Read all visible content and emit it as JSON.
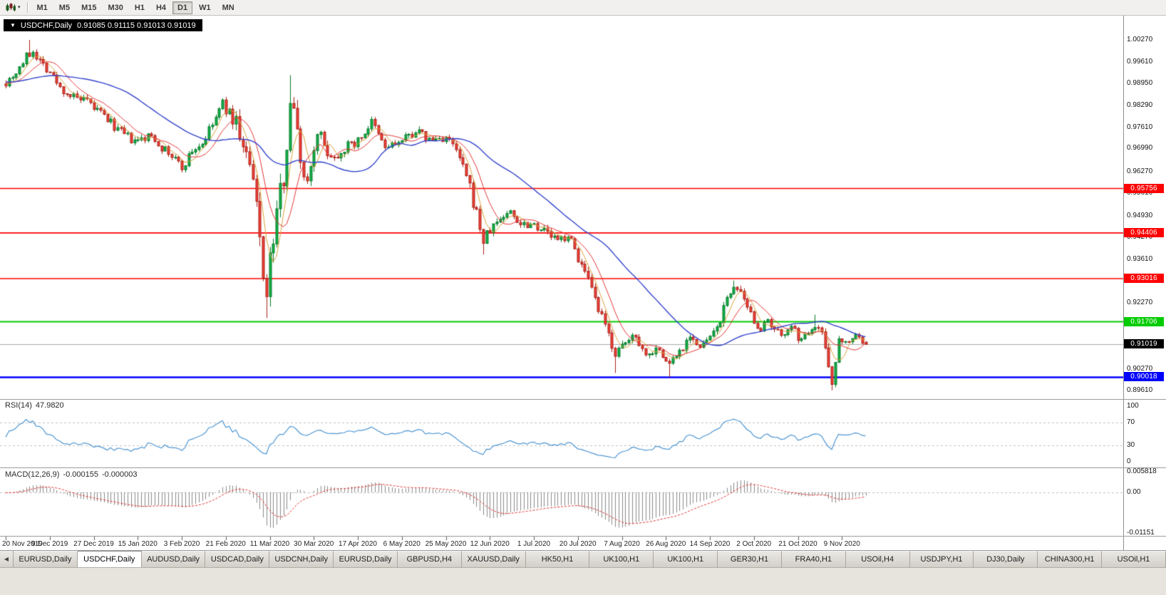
{
  "icons": {
    "chart_dropdown": "▼",
    "toolbar_caret": "▾",
    "tab_scroll_left": "◀"
  },
  "toolbar": {
    "timeframes": [
      "M1",
      "M5",
      "M15",
      "M30",
      "H1",
      "H4",
      "D1",
      "W1",
      "MN"
    ],
    "active_timeframe": "D1"
  },
  "chart": {
    "title_symbol": "USDCHF,Daily",
    "title_ohlc": "0.91085 0.91115 0.91013 0.91019"
  },
  "tabs": {
    "active_index": 1,
    "items": [
      "EURUSD,Daily",
      "USDCHF,Daily",
      "AUDUSD,Daily",
      "USDCAD,Daily",
      "USDCNH,Daily",
      "EURUSD,Daily",
      "GBPUSD,H4",
      "XAUUSD,Daily",
      "HK50,H1",
      "UK100,H1",
      "UK100,H1",
      "GER30,H1",
      "FRA40,H1",
      "USOil,H4",
      "USDJPY,H1",
      "DJ30,Daily",
      "CHINA300,H1",
      "USOil,H1"
    ]
  },
  "chart_data": {
    "type": "candlestick",
    "symbol": "USDCHF",
    "timeframe": "Daily",
    "bars": 255,
    "bars_per_x_tick": 13,
    "x_tick_labels": [
      "20 Nov 2019",
      "9 Dec 2019",
      "27 Dec 2019",
      "15 Jan 2020",
      "3 Feb 2020",
      "21 Feb 2020",
      "11 Mar 2020",
      "30 Mar 2020",
      "17 Apr 2020",
      "6 May 2020",
      "25 May 2020",
      "12 Jun 2020",
      "1 Jul 2020",
      "20 Jul 2020",
      "7 Aug 2020",
      "26 Aug 2020",
      "14 Sep 2020",
      "2 Oct 2020",
      "21 Oct 2020",
      "9 Nov 2020"
    ],
    "price_range": {
      "top": 1.009,
      "bottom": 0.894
    },
    "y_axis_labels": [
      {
        "label": "1.00270",
        "value": 1.0027
      },
      {
        "label": "0.99610",
        "value": 0.9961
      },
      {
        "label": "0.98950",
        "value": 0.9895
      },
      {
        "label": "0.98290",
        "value": 0.9829
      },
      {
        "label": "0.97610",
        "value": 0.9761
      },
      {
        "label": "0.96990",
        "value": 0.9699
      },
      {
        "label": "0.96270",
        "value": 0.9627
      },
      {
        "label": "0.95610",
        "value": 0.9561
      },
      {
        "label": "0.94930",
        "value": 0.9493
      },
      {
        "label": "0.94270",
        "value": 0.9427
      },
      {
        "label": "0.93610",
        "value": 0.9361
      },
      {
        "label": "0.92270",
        "value": 0.9227
      },
      {
        "label": "0.91610",
        "value": 0.9161
      },
      {
        "label": "0.90270",
        "value": 0.9027
      },
      {
        "label": "0.89610",
        "value": 0.8961
      }
    ],
    "horizontal_levels": [
      {
        "label": "0.95756",
        "value": 0.95756,
        "color": "#ff0000",
        "width": 1.6
      },
      {
        "label": "0.94406",
        "value": 0.94406,
        "color": "#ff0000",
        "width": 1.6
      },
      {
        "label": "0.93016",
        "value": 0.93016,
        "color": "#ff0000",
        "width": 1.6
      },
      {
        "label": "0.91706",
        "value": 0.91706,
        "color": "#00cc00",
        "width": 2
      },
      {
        "label": "0.90018",
        "value": 0.90018,
        "color": "#0000ff",
        "width": 2.4
      }
    ],
    "current_price": {
      "label": "0.91019",
      "value": 0.91019,
      "line_color": "#a8a8a8",
      "label_bg": "#000000"
    },
    "candles": {
      "up_color": "#12b24a",
      "up_border": "#067a28",
      "down_color": "#f2423a",
      "down_border": "#a82017",
      "last_ohlc": {
        "open": 0.91085,
        "high": 0.91115,
        "low": 0.91013,
        "close": 0.91019
      },
      "price_anchors": [
        [
          0,
          0.99
        ],
        [
          3,
          0.993
        ],
        [
          6,
          0.9975
        ],
        [
          8,
          0.9995
        ],
        [
          10,
          0.9965
        ],
        [
          13,
          0.993
        ],
        [
          16,
          0.988
        ],
        [
          20,
          0.9852
        ],
        [
          24,
          0.9836
        ],
        [
          28,
          0.9805
        ],
        [
          33,
          0.9755
        ],
        [
          38,
          0.9715
        ],
        [
          43,
          0.9737
        ],
        [
          47,
          0.969
        ],
        [
          50,
          0.9665
        ],
        [
          52,
          0.9638
        ],
        [
          55,
          0.969
        ],
        [
          58,
          0.9712
        ],
        [
          61,
          0.977
        ],
        [
          64,
          0.9833
        ],
        [
          66,
          0.98
        ],
        [
          68,
          0.978
        ],
        [
          70,
          0.97
        ],
        [
          72,
          0.964
        ],
        [
          74,
          0.952
        ],
        [
          76,
          0.933
        ],
        [
          77,
          0.9245
        ],
        [
          78,
          0.935
        ],
        [
          80,
          0.95
        ],
        [
          82,
          0.962
        ],
        [
          83,
          0.972
        ],
        [
          84,
          0.985
        ],
        [
          85,
          0.98
        ],
        [
          86,
          0.976
        ],
        [
          88,
          0.96
        ],
        [
          90,
          0.964
        ],
        [
          92,
          0.976
        ],
        [
          94,
          0.97
        ],
        [
          97,
          0.967
        ],
        [
          100,
          0.97
        ],
        [
          104,
          0.972
        ],
        [
          108,
          0.9775
        ],
        [
          112,
          0.97
        ],
        [
          117,
          0.9718
        ],
        [
          121,
          0.9752
        ],
        [
          125,
          0.9722
        ],
        [
          130,
          0.973
        ],
        [
          133,
          0.969
        ],
        [
          136,
          0.961
        ],
        [
          139,
          0.95
        ],
        [
          141,
          0.9415
        ],
        [
          143,
          0.945
        ],
        [
          146,
          0.9485
        ],
        [
          149,
          0.9505
        ],
        [
          152,
          0.947
        ],
        [
          156,
          0.947
        ],
        [
          160,
          0.944
        ],
        [
          163,
          0.9415
        ],
        [
          166,
          0.9435
        ],
        [
          168,
          0.939
        ],
        [
          170,
          0.934
        ],
        [
          172,
          0.929
        ],
        [
          174,
          0.923
        ],
        [
          176,
          0.918
        ],
        [
          178,
          0.913
        ],
        [
          180,
          0.9075
        ],
        [
          182,
          0.909
        ],
        [
          184,
          0.9115
        ],
        [
          186,
          0.9135
        ],
        [
          188,
          0.9085
        ],
        [
          190,
          0.907
        ],
        [
          192,
          0.91
        ],
        [
          194,
          0.906
        ],
        [
          196,
          0.9045
        ],
        [
          198,
          0.907
        ],
        [
          200,
          0.9095
        ],
        [
          202,
          0.9135
        ],
        [
          205,
          0.9085
        ],
        [
          207,
          0.9115
        ],
        [
          209,
          0.913
        ],
        [
          211,
          0.918
        ],
        [
          213,
          0.9235
        ],
        [
          215,
          0.9285
        ],
        [
          217,
          0.925
        ],
        [
          219,
          0.9205
        ],
        [
          221,
          0.9175
        ],
        [
          223,
          0.915
        ],
        [
          225,
          0.9165
        ],
        [
          227,
          0.914
        ],
        [
          229,
          0.913
        ],
        [
          231,
          0.9155
        ],
        [
          233,
          0.914
        ],
        [
          235,
          0.911
        ],
        [
          237,
          0.9145
        ],
        [
          239,
          0.9165
        ],
        [
          241,
          0.9135
        ],
        [
          243,
          0.905
        ],
        [
          244,
          0.8995
        ],
        [
          245,
          0.9035
        ],
        [
          246,
          0.9125
        ],
        [
          247,
          0.9122
        ],
        [
          249,
          0.9108
        ],
        [
          251,
          0.9135
        ],
        [
          253,
          0.9108
        ],
        [
          254,
          0.9102
        ]
      ],
      "volatility_anchors": [
        [
          0,
          0.0013
        ],
        [
          60,
          0.0013
        ],
        [
          66,
          0.0018
        ],
        [
          70,
          0.0032
        ],
        [
          78,
          0.0042
        ],
        [
          86,
          0.0032
        ],
        [
          92,
          0.0022
        ],
        [
          100,
          0.0015
        ],
        [
          130,
          0.0013
        ],
        [
          138,
          0.002
        ],
        [
          146,
          0.0014
        ],
        [
          168,
          0.0013
        ],
        [
          172,
          0.0018
        ],
        [
          182,
          0.0014
        ],
        [
          208,
          0.0013
        ],
        [
          213,
          0.0017
        ],
        [
          220,
          0.0013
        ],
        [
          240,
          0.0012
        ],
        [
          243,
          0.002
        ],
        [
          246,
          0.002
        ],
        [
          248,
          0.001
        ],
        [
          254,
          0.0007
        ]
      ],
      "wick_extremes": [
        {
          "bar": 7,
          "high": 1.0027
        },
        {
          "bar": 77,
          "low": 0.9182
        },
        {
          "bar": 84,
          "high": 0.992
        },
        {
          "bar": 141,
          "low": 0.9375
        },
        {
          "bar": 180,
          "low": 0.9015
        },
        {
          "bar": 196,
          "low": 0.9002
        },
        {
          "bar": 215,
          "high": 0.9296
        },
        {
          "bar": 239,
          "high": 0.9192
        },
        {
          "bar": 244,
          "low": 0.8962
        }
      ]
    },
    "moving_averages": [
      {
        "period": 5,
        "color": "#d8a23a",
        "width": 1
      },
      {
        "period": 10,
        "color": "#e23535",
        "width": 1
      },
      {
        "period": 34,
        "color": "#3344cc",
        "width": 1.4
      }
    ],
    "rsi": {
      "name": "RSI(14)",
      "value": "47.9820",
      "period": 14,
      "color": "#4e96d2",
      "dashed_levels": [
        70,
        30
      ],
      "level_color": "#c0c0c0",
      "axis_labels": [
        {
          "label": "100",
          "value": 100
        },
        {
          "label": "70",
          "value": 70
        },
        {
          "label": "30",
          "value": 30
        },
        {
          "label": "0",
          "value": 0
        }
      ]
    },
    "macd": {
      "name": "MACD(12,26,9)",
      "value_main": "-0.000155",
      "value_signal": "-0.000003",
      "fast": 12,
      "slow": 26,
      "signal": 9,
      "hist_color": "#8a8a8a",
      "signal_color": "#e03232",
      "level_color": "#c0c0c0",
      "axis_labels": [
        {
          "label": "0.005818",
          "value": 0.005818
        },
        {
          "label": "0.00",
          "value": 0
        },
        {
          "label": "-0.01151",
          "value": -0.01151
        }
      ]
    }
  }
}
